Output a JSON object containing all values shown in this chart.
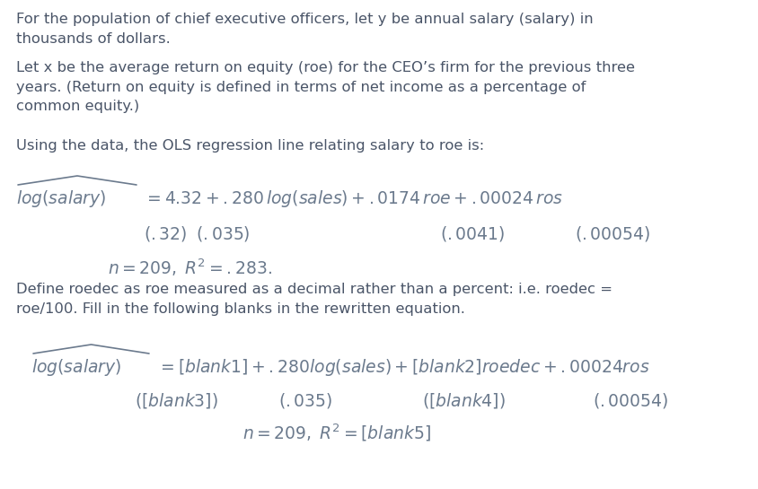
{
  "background_color": "#ffffff",
  "text_color": "#4a5568",
  "body_color": "#4a5568",
  "math_color": "#6b7a8d",
  "para1": "For the population of chief executive officers, let y be annual salary (salary) in\nthousands of dollars.",
  "para2": "Let x be the average return on equity (roe) for the CEO’s firm for the previous three\nyears. (Return on equity is defined in terms of net income as a percentage of\ncommon equity.)",
  "para3": "Using the data, the OLS regression line relating salary to roe is:",
  "para4": "Define roedec as roe measured as a decimal rather than a percent: i.e. roedec =\nroe/100. Fill in the following blanks in the rewritten equation.",
  "figsize": [
    8.45,
    5.45
  ],
  "dpi": 100,
  "body_fs": 11.8,
  "math_fs": 13.5
}
